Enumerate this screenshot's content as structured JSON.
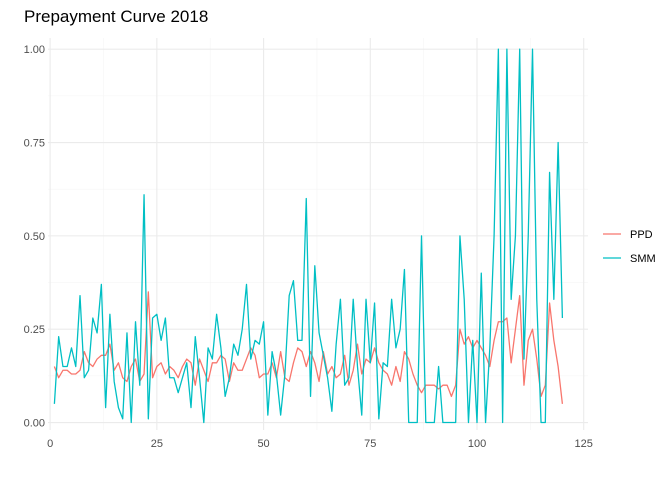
{
  "chart_data": {
    "type": "line",
    "title": "Prepayment Curve 2018",
    "xlabel": "",
    "ylabel": "",
    "xlim": [
      -0.5,
      126
    ],
    "ylim": [
      -0.02,
      1.03
    ],
    "xticks": [
      0,
      25,
      50,
      75,
      100,
      125
    ],
    "xtick_labels": [
      "0",
      "25",
      "50",
      "75",
      "100",
      "125"
    ],
    "yticks": [
      0.0,
      0.25,
      0.5,
      0.75,
      1.0
    ],
    "ytick_labels": [
      "0.00",
      "0.25",
      "0.50",
      "0.75",
      "1.00"
    ],
    "grid": true,
    "legend": "right",
    "x": [
      1,
      2,
      3,
      4,
      5,
      6,
      7,
      8,
      9,
      10,
      11,
      12,
      13,
      14,
      15,
      16,
      17,
      18,
      19,
      20,
      21,
      22,
      23,
      24,
      25,
      26,
      27,
      28,
      29,
      30,
      31,
      32,
      33,
      34,
      35,
      36,
      37,
      38,
      39,
      40,
      41,
      42,
      43,
      44,
      45,
      46,
      47,
      48,
      49,
      50,
      51,
      52,
      53,
      54,
      55,
      56,
      57,
      58,
      59,
      60,
      61,
      62,
      63,
      64,
      65,
      66,
      67,
      68,
      69,
      70,
      71,
      72,
      73,
      74,
      75,
      76,
      77,
      78,
      79,
      80,
      81,
      82,
      83,
      84,
      85,
      86,
      87,
      88,
      89,
      90,
      91,
      92,
      93,
      94,
      95,
      96,
      97,
      98,
      99,
      100,
      101,
      102,
      103,
      104,
      105,
      106,
      107,
      108,
      109,
      110,
      111,
      112,
      113,
      114,
      115,
      116,
      117,
      118,
      119,
      120
    ],
    "series": [
      {
        "name": "PPD",
        "color": "#F8766D",
        "values": [
          0.15,
          0.12,
          0.14,
          0.14,
          0.13,
          0.13,
          0.14,
          0.19,
          0.16,
          0.15,
          0.17,
          0.18,
          0.18,
          0.21,
          0.14,
          0.16,
          0.12,
          0.11,
          0.15,
          0.17,
          0.11,
          0.13,
          0.35,
          0.12,
          0.15,
          0.16,
          0.13,
          0.15,
          0.14,
          0.12,
          0.15,
          0.17,
          0.16,
          0.1,
          0.17,
          0.14,
          0.11,
          0.16,
          0.16,
          0.18,
          0.17,
          0.11,
          0.16,
          0.14,
          0.14,
          0.17,
          0.2,
          0.18,
          0.12,
          0.13,
          0.13,
          0.16,
          0.12,
          0.19,
          0.12,
          0.11,
          0.16,
          0.2,
          0.19,
          0.15,
          0.19,
          0.16,
          0.11,
          0.19,
          0.13,
          0.15,
          0.12,
          0.13,
          0.18,
          0.1,
          0.14,
          0.21,
          0.13,
          0.17,
          0.16,
          0.2,
          0.16,
          0.14,
          0.13,
          0.1,
          0.15,
          0.11,
          0.19,
          0.17,
          0.13,
          0.1,
          0.08,
          0.1,
          0.1,
          0.1,
          0.09,
          0.1,
          0.1,
          0.07,
          0.1,
          0.25,
          0.21,
          0.23,
          0.2,
          0.22,
          0.2,
          0.18,
          0.15,
          0.22,
          0.27,
          0.27,
          0.28,
          0.16,
          0.25,
          0.34,
          0.1,
          0.22,
          0.25,
          0.17,
          0.07,
          0.1,
          0.32,
          0.22,
          0.15,
          0.05
        ]
      },
      {
        "name": "SMM",
        "color": "#00BFC4",
        "values": [
          0.05,
          0.23,
          0.15,
          0.15,
          0.2,
          0.15,
          0.34,
          0.12,
          0.14,
          0.28,
          0.24,
          0.37,
          0.04,
          0.29,
          0.11,
          0.04,
          0.01,
          0.24,
          0.0,
          0.27,
          0.1,
          0.61,
          0.01,
          0.28,
          0.29,
          0.22,
          0.28,
          0.12,
          0.12,
          0.08,
          0.12,
          0.16,
          0.04,
          0.23,
          0.12,
          0.0,
          0.2,
          0.17,
          0.29,
          0.2,
          0.07,
          0.12,
          0.21,
          0.18,
          0.25,
          0.37,
          0.17,
          0.22,
          0.21,
          0.27,
          0.02,
          0.19,
          0.13,
          0.02,
          0.13,
          0.34,
          0.38,
          0.22,
          0.22,
          0.6,
          0.07,
          0.42,
          0.24,
          0.18,
          0.12,
          0.03,
          0.21,
          0.33,
          0.1,
          0.12,
          0.33,
          0.15,
          0.02,
          0.33,
          0.16,
          0.32,
          0.01,
          0.16,
          0.15,
          0.33,
          0.2,
          0.25,
          0.41,
          0.0,
          0.0,
          0.0,
          0.5,
          0.0,
          0.0,
          0.0,
          0.15,
          0.0,
          0.0,
          0.0,
          0.0,
          0.5,
          0.33,
          0.0,
          0.22,
          0.0,
          0.4,
          0.0,
          0.2,
          0.5,
          1.0,
          0.0,
          1.0,
          0.33,
          0.5,
          1.0,
          0.17,
          0.5,
          1.0,
          0.33,
          0.0,
          0.0,
          0.67,
          0.33,
          0.75,
          0.28
        ]
      }
    ]
  }
}
